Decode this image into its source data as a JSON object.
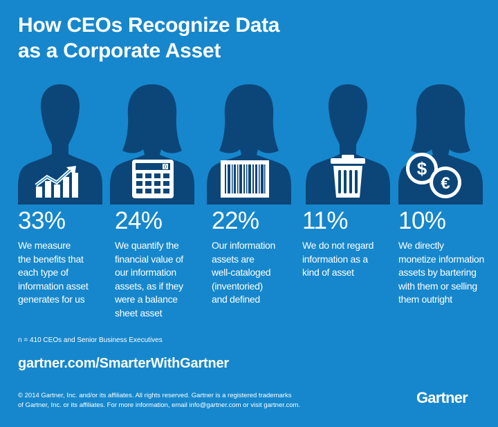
{
  "header": {
    "title_line1": "How CEOs Recognize Data",
    "title_line2": "as a Corporate Asset"
  },
  "stats": [
    {
      "percent": "33%",
      "description": "We measure\nthe benefits that\neach type of\ninformation asset\ngenerates for us",
      "icon": "growth-chart-icon"
    },
    {
      "percent": "24%",
      "description": "We quantify the\nfinancial value of\nour information\nassets, as if they\nwere a balance\nsheet asset",
      "icon": "calculator-icon"
    },
    {
      "percent": "22%",
      "description": "Our information\nassets are\nwell-cataloged\n(inventoried)\nand defined",
      "icon": "barcode-icon"
    },
    {
      "percent": "11%",
      "description": "We do not regard\ninformation as a\nkind of asset",
      "icon": "trash-can-icon"
    },
    {
      "percent": "10%",
      "description": "We directly\nmonetize information\nassets by bartering\nwith them or selling\nthem outright",
      "icon": "coins-icon"
    }
  ],
  "footer": {
    "sample_note": "n = 410 CEOs and Senior Business Executives",
    "url": "gartner.com/SmarterWithGartner",
    "copyright_line1": "© 2014 Gartner, Inc. and/or its affiliates. All rights reserved. Gartner is a registered trademarks",
    "copyright_line2": "of Gartner, Inc. or its affiliates. For more information, email info@gartner.com or visit gartner.com.",
    "logo_text": "Gartner"
  },
  "colors": {
    "background": "#1687cc",
    "silhouette": "#0c4679",
    "text": "#ffffff"
  }
}
